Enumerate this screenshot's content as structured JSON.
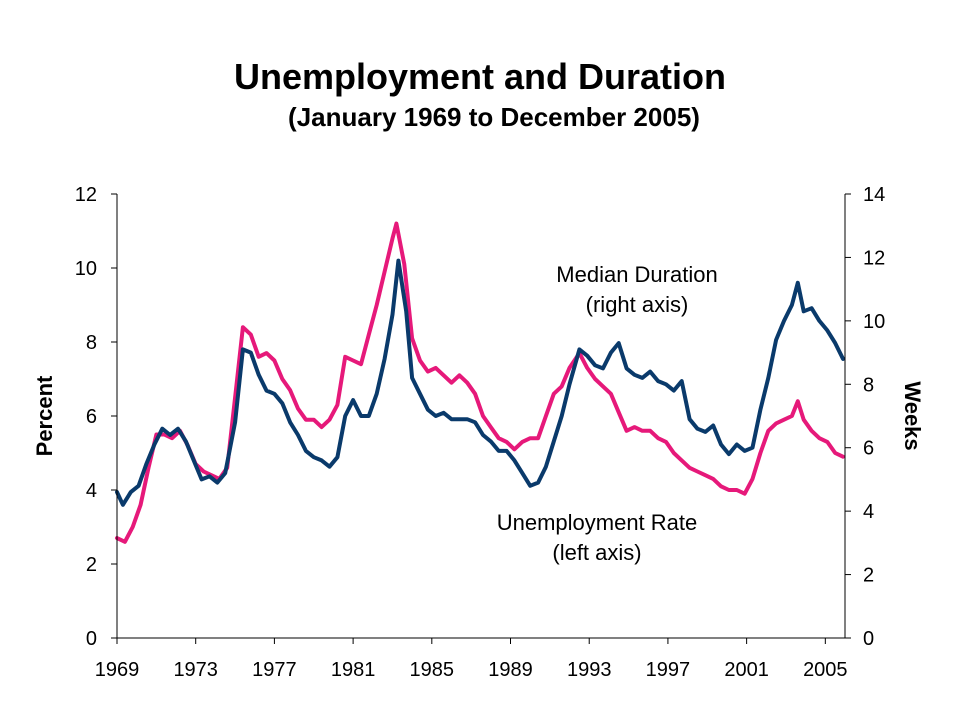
{
  "chart_data": {
    "type": "line",
    "title": "Unemployment and Duration",
    "subtitle": "(January 1969 to December 2005)",
    "ylabel": "Percent",
    "y2label": "Weeks",
    "xlim": [
      1969,
      2006
    ],
    "ylim": [
      0,
      12
    ],
    "y2lim": [
      0,
      14
    ],
    "x_ticks": [
      "1969",
      "1973",
      "1977",
      "1981",
      "1985",
      "1989",
      "1993",
      "1997",
      "2001",
      "2005"
    ],
    "y_ticks": [
      "0",
      "2",
      "4",
      "6",
      "8",
      "10",
      "12"
    ],
    "y2_ticks": [
      "0",
      "2",
      "4",
      "6",
      "8",
      "10",
      "12",
      "14"
    ],
    "grid": false,
    "annotations": [
      {
        "lines": [
          "Median Duration",
          "(right axis)"
        ]
      },
      {
        "lines": [
          "Unemployment Rate",
          "(left axis)"
        ]
      }
    ],
    "series": [
      {
        "name": "Unemployment Rate",
        "axis": "left",
        "color": "#e6197a",
        "points": [
          [
            1969.0,
            2.7
          ],
          [
            1969.4,
            2.6
          ],
          [
            1969.8,
            3.0
          ],
          [
            1970.2,
            3.6
          ],
          [
            1970.6,
            4.6
          ],
          [
            1971.0,
            5.5
          ],
          [
            1971.4,
            5.5
          ],
          [
            1971.8,
            5.4
          ],
          [
            1972.2,
            5.6
          ],
          [
            1972.6,
            5.2
          ],
          [
            1973.0,
            4.7
          ],
          [
            1973.4,
            4.5
          ],
          [
            1973.8,
            4.4
          ],
          [
            1974.2,
            4.3
          ],
          [
            1974.6,
            4.6
          ],
          [
            1975.0,
            6.5
          ],
          [
            1975.4,
            8.4
          ],
          [
            1975.8,
            8.2
          ],
          [
            1976.2,
            7.6
          ],
          [
            1976.6,
            7.7
          ],
          [
            1977.0,
            7.5
          ],
          [
            1977.4,
            7.0
          ],
          [
            1977.8,
            6.7
          ],
          [
            1978.2,
            6.2
          ],
          [
            1978.6,
            5.9
          ],
          [
            1979.0,
            5.9
          ],
          [
            1979.4,
            5.7
          ],
          [
            1979.8,
            5.9
          ],
          [
            1980.2,
            6.3
          ],
          [
            1980.6,
            7.6
          ],
          [
            1981.0,
            7.5
          ],
          [
            1981.4,
            7.4
          ],
          [
            1981.8,
            8.2
          ],
          [
            1982.2,
            9.0
          ],
          [
            1982.6,
            9.9
          ],
          [
            1983.0,
            10.8
          ],
          [
            1983.2,
            11.2
          ],
          [
            1983.6,
            10.1
          ],
          [
            1984.0,
            8.1
          ],
          [
            1984.4,
            7.5
          ],
          [
            1984.8,
            7.2
          ],
          [
            1985.2,
            7.3
          ],
          [
            1985.6,
            7.1
          ],
          [
            1986.0,
            6.9
          ],
          [
            1986.4,
            7.1
          ],
          [
            1986.8,
            6.9
          ],
          [
            1987.2,
            6.6
          ],
          [
            1987.6,
            6.0
          ],
          [
            1988.0,
            5.7
          ],
          [
            1988.4,
            5.4
          ],
          [
            1988.8,
            5.3
          ],
          [
            1989.2,
            5.1
          ],
          [
            1989.6,
            5.3
          ],
          [
            1990.0,
            5.4
          ],
          [
            1990.4,
            5.4
          ],
          [
            1990.8,
            6.0
          ],
          [
            1991.2,
            6.6
          ],
          [
            1991.6,
            6.8
          ],
          [
            1992.0,
            7.3
          ],
          [
            1992.5,
            7.7
          ],
          [
            1992.9,
            7.3
          ],
          [
            1993.3,
            7.0
          ],
          [
            1993.7,
            6.8
          ],
          [
            1994.1,
            6.6
          ],
          [
            1994.5,
            6.1
          ],
          [
            1994.9,
            5.6
          ],
          [
            1995.3,
            5.7
          ],
          [
            1995.7,
            5.6
          ],
          [
            1996.1,
            5.6
          ],
          [
            1996.5,
            5.4
          ],
          [
            1996.9,
            5.3
          ],
          [
            1997.3,
            5.0
          ],
          [
            1997.7,
            4.8
          ],
          [
            1998.1,
            4.6
          ],
          [
            1998.5,
            4.5
          ],
          [
            1998.9,
            4.4
          ],
          [
            1999.3,
            4.3
          ],
          [
            1999.7,
            4.1
          ],
          [
            2000.1,
            4.0
          ],
          [
            2000.5,
            4.0
          ],
          [
            2000.9,
            3.9
          ],
          [
            2001.3,
            4.3
          ],
          [
            2001.7,
            5.0
          ],
          [
            2002.1,
            5.6
          ],
          [
            2002.5,
            5.8
          ],
          [
            2002.9,
            5.9
          ],
          [
            2003.3,
            6.0
          ],
          [
            2003.6,
            6.4
          ],
          [
            2003.9,
            5.9
          ],
          [
            2004.3,
            5.6
          ],
          [
            2004.7,
            5.4
          ],
          [
            2005.1,
            5.3
          ],
          [
            2005.5,
            5.0
          ],
          [
            2005.9,
            4.9
          ]
        ]
      },
      {
        "name": "Median Duration",
        "axis": "right",
        "color": "#0a3a6b",
        "points": [
          [
            1969.0,
            4.6
          ],
          [
            1969.3,
            4.2
          ],
          [
            1969.7,
            4.6
          ],
          [
            1970.1,
            4.8
          ],
          [
            1970.5,
            5.5
          ],
          [
            1970.9,
            6.1
          ],
          [
            1971.3,
            6.6
          ],
          [
            1971.7,
            6.4
          ],
          [
            1972.1,
            6.6
          ],
          [
            1972.5,
            6.2
          ],
          [
            1972.9,
            5.6
          ],
          [
            1973.3,
            5.0
          ],
          [
            1973.7,
            5.1
          ],
          [
            1974.1,
            4.9
          ],
          [
            1974.5,
            5.2
          ],
          [
            1975.0,
            6.8
          ],
          [
            1975.4,
            9.1
          ],
          [
            1975.8,
            9.0
          ],
          [
            1976.2,
            8.3
          ],
          [
            1976.6,
            7.8
          ],
          [
            1977.0,
            7.7
          ],
          [
            1977.4,
            7.4
          ],
          [
            1977.8,
            6.8
          ],
          [
            1978.2,
            6.4
          ],
          [
            1978.6,
            5.9
          ],
          [
            1979.0,
            5.7
          ],
          [
            1979.4,
            5.6
          ],
          [
            1979.8,
            5.4
          ],
          [
            1980.2,
            5.7
          ],
          [
            1980.6,
            7.0
          ],
          [
            1981.0,
            7.5
          ],
          [
            1981.4,
            7.0
          ],
          [
            1981.8,
            7.0
          ],
          [
            1982.2,
            7.7
          ],
          [
            1982.6,
            8.8
          ],
          [
            1983.0,
            10.2
          ],
          [
            1983.3,
            11.9
          ],
          [
            1983.7,
            10.3
          ],
          [
            1984.0,
            8.2
          ],
          [
            1984.4,
            7.7
          ],
          [
            1984.8,
            7.2
          ],
          [
            1985.2,
            7.0
          ],
          [
            1985.6,
            7.1
          ],
          [
            1986.0,
            6.9
          ],
          [
            1986.4,
            6.9
          ],
          [
            1986.8,
            6.9
          ],
          [
            1987.2,
            6.8
          ],
          [
            1987.6,
            6.4
          ],
          [
            1988.0,
            6.2
          ],
          [
            1988.4,
            5.9
          ],
          [
            1988.8,
            5.9
          ],
          [
            1989.2,
            5.6
          ],
          [
            1989.6,
            5.2
          ],
          [
            1990.0,
            4.8
          ],
          [
            1990.4,
            4.9
          ],
          [
            1990.8,
            5.4
          ],
          [
            1991.2,
            6.2
          ],
          [
            1991.6,
            7.0
          ],
          [
            1992.0,
            8.0
          ],
          [
            1992.5,
            9.1
          ],
          [
            1992.9,
            8.9
          ],
          [
            1993.3,
            8.6
          ],
          [
            1993.7,
            8.5
          ],
          [
            1994.1,
            9.0
          ],
          [
            1994.5,
            9.3
          ],
          [
            1994.9,
            8.5
          ],
          [
            1995.3,
            8.3
          ],
          [
            1995.7,
            8.2
          ],
          [
            1996.1,
            8.4
          ],
          [
            1996.5,
            8.1
          ],
          [
            1996.9,
            8.0
          ],
          [
            1997.3,
            7.8
          ],
          [
            1997.7,
            8.1
          ],
          [
            1998.1,
            6.9
          ],
          [
            1998.5,
            6.6
          ],
          [
            1998.9,
            6.5
          ],
          [
            1999.3,
            6.7
          ],
          [
            1999.7,
            6.1
          ],
          [
            2000.1,
            5.8
          ],
          [
            2000.5,
            6.1
          ],
          [
            2000.9,
            5.9
          ],
          [
            2001.3,
            6.0
          ],
          [
            2001.7,
            7.2
          ],
          [
            2002.1,
            8.2
          ],
          [
            2002.5,
            9.4
          ],
          [
            2002.9,
            10.0
          ],
          [
            2003.3,
            10.5
          ],
          [
            2003.6,
            11.2
          ],
          [
            2003.9,
            10.3
          ],
          [
            2004.3,
            10.4
          ],
          [
            2004.7,
            10.0
          ],
          [
            2005.1,
            9.7
          ],
          [
            2005.5,
            9.3
          ],
          [
            2005.9,
            8.8
          ]
        ]
      }
    ]
  }
}
